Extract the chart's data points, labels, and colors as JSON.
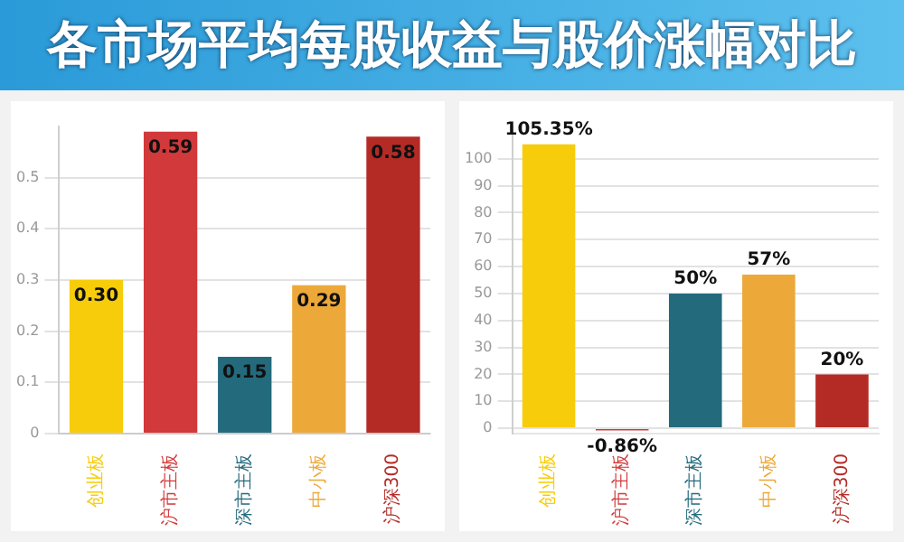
{
  "chart_data": [
    {
      "type": "bar",
      "title": "各市场平均每股收益与股价涨幅对比",
      "categories": [
        "创业板",
        "沪市主板",
        "深市主板",
        "中小板",
        "沪深300"
      ],
      "values": [
        0.3,
        0.59,
        0.15,
        0.29,
        0.58
      ],
      "colors": [
        "#f7cc0a",
        "#d2393a",
        "#236a7d",
        "#eca93a",
        "#b42b26"
      ],
      "value_labels": [
        "0.30",
        "0.59",
        "0.15",
        "0.29",
        "0.58"
      ],
      "ylim": [
        0,
        0.6
      ],
      "yticks": [
        0,
        0.1,
        0.2,
        0.3,
        0.4,
        0.5
      ],
      "grid": "y",
      "legend": false
    },
    {
      "type": "bar",
      "categories": [
        "创业板",
        "沪市主板",
        "深市主板",
        "中小板",
        "沪深300"
      ],
      "values": [
        105.35,
        -0.86,
        50,
        57,
        20
      ],
      "colors": [
        "#f7cc0a",
        "#d2393a",
        "#236a7d",
        "#eca93a",
        "#b42b26"
      ],
      "value_labels": [
        "105.35%",
        "-0.86%",
        "50%",
        "57%",
        "20%"
      ],
      "ylim": [
        -2,
        112
      ],
      "yticks": [
        0,
        10,
        20,
        30,
        40,
        50,
        60,
        70,
        80,
        90,
        100
      ],
      "grid": "y",
      "legend": false
    }
  ]
}
